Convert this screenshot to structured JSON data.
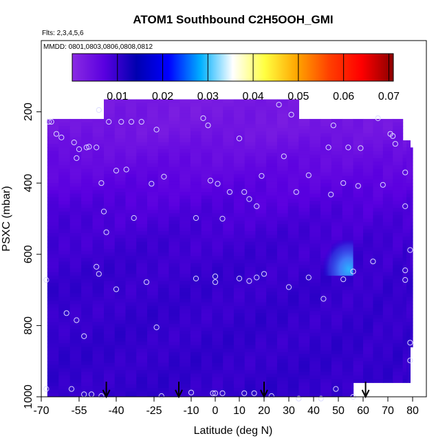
{
  "chart_data": {
    "type": "heatmap",
    "title": "ATOM1 Southbound C2H5OOH_GMI",
    "annotations": {
      "flights": "Flts: 2,3,4,5,6",
      "dates": "MMDD: 0801,0803,0806,0808,0812"
    },
    "xlabel": "Latitude (deg N)",
    "ylabel": "PSXC (mbar)",
    "xlim": [
      -70,
      80
    ],
    "ylim": [
      1000,
      0
    ],
    "y_inverted": true,
    "x_ticks": [
      -70,
      -55,
      -40,
      -25,
      -10,
      0,
      10,
      20,
      30,
      40,
      50,
      60,
      70,
      80
    ],
    "x_tick_labels": [
      "-70",
      "-55",
      "-40",
      "-25",
      "-10",
      "0",
      "10",
      "20",
      "30",
      "40",
      "50",
      "60",
      "70",
      "80"
    ],
    "y_ticks": [
      200,
      400,
      600,
      800,
      1000
    ],
    "y_tick_labels": [
      "200",
      "400",
      "600",
      "800",
      "1000"
    ],
    "colorbar": {
      "range": [
        0,
        0.071
      ],
      "ticks": [
        0.01,
        0.02,
        0.03,
        0.04,
        0.05,
        0.06,
        0.07
      ],
      "tick_labels": [
        "0.01",
        "0.02",
        "0.03",
        "0.04",
        "0.05",
        "0.06",
        "0.07"
      ],
      "colors": [
        "#8a2be2",
        "#5a00e0",
        "#0000b0",
        "#0000ff",
        "#00b0ff",
        "#ffffff",
        "#ffff40",
        "#ffa500",
        "#ff4000",
        "#ff0000",
        "#8b0000"
      ]
    },
    "lat_bands": [
      {
        "lat": [
          -67.6,
          -45
        ],
        "pmin": 220,
        "pmax": 1000
      },
      {
        "lat": [
          -45,
          34
        ],
        "pmin": 165,
        "pmax": 1000
      },
      {
        "lat": [
          34,
          56
        ],
        "pmin": 220,
        "pmax": 1000
      },
      {
        "lat": [
          56,
          76
        ],
        "pmin": 220,
        "pmax": 960
      },
      {
        "lat": [
          76,
          79
        ],
        "pmin": 280,
        "pmax": 960
      },
      {
        "lat": [
          79,
          80
        ],
        "pmin": 300,
        "pmax": 860
      }
    ],
    "field_profile": [
      {
        "p": 160,
        "value": 0.0028
      },
      {
        "p": 250,
        "value": 0.0035
      },
      {
        "p": 320,
        "value": 0.0052
      },
      {
        "p": 400,
        "value": 0.0068
      },
      {
        "p": 480,
        "value": 0.0082
      },
      {
        "p": 560,
        "value": 0.0092
      },
      {
        "p": 650,
        "value": 0.0098
      },
      {
        "p": 800,
        "value": 0.0101
      },
      {
        "p": 1000,
        "value": 0.0103
      }
    ],
    "anomaly": {
      "lat": [
        44,
        56
      ],
      "p": [
        560,
        660
      ],
      "peak_lat": 54,
      "peak_p": 650,
      "peak_value": 0.022
    },
    "observations": [
      [
        -67,
        228
      ],
      [
        -66,
        228
      ],
      [
        -64,
        262
      ],
      [
        -62,
        272
      ],
      [
        -57,
        286
      ],
      [
        -56,
        330
      ],
      [
        -55,
        305
      ],
      [
        -52,
        300
      ],
      [
        -51,
        298
      ],
      [
        -48,
        300
      ],
      [
        -47,
        195
      ],
      [
        -46,
        400
      ],
      [
        -45,
        480
      ],
      [
        -44,
        538
      ],
      [
        -43,
        228
      ],
      [
        -40,
        365
      ],
      [
        -38,
        228
      ],
      [
        -36,
        362
      ],
      [
        -34,
        228
      ],
      [
        -33,
        498
      ],
      [
        -30,
        228
      ],
      [
        -26,
        402
      ],
      [
        -24,
        250
      ],
      [
        -21,
        382
      ],
      [
        -8,
        498
      ],
      [
        -5,
        218
      ],
      [
        -3,
        238
      ],
      [
        -2,
        393
      ],
      [
        1,
        402
      ],
      [
        3,
        500
      ],
      [
        6,
        425
      ],
      [
        10,
        275
      ],
      [
        12,
        425
      ],
      [
        14,
        445
      ],
      [
        17,
        465
      ],
      [
        19,
        380
      ],
      [
        26,
        180
      ],
      [
        28,
        325
      ],
      [
        31,
        208
      ],
      [
        33,
        425
      ],
      [
        38,
        378
      ],
      [
        46,
        300
      ],
      [
        47,
        432
      ],
      [
        48,
        238
      ],
      [
        52,
        400
      ],
      [
        54,
        300
      ],
      [
        58,
        408
      ],
      [
        59,
        302
      ],
      [
        66,
        218
      ],
      [
        68,
        405
      ],
      [
        71,
        262
      ],
      [
        72,
        268
      ],
      [
        73,
        290
      ],
      [
        77,
        465
      ],
      [
        77,
        370
      ],
      [
        -68,
        672
      ],
      [
        -60,
        765
      ],
      [
        -56,
        785
      ],
      [
        -53,
        830
      ],
      [
        -48,
        635
      ],
      [
        -47,
        655
      ],
      [
        -40,
        698
      ],
      [
        -28,
        678
      ],
      [
        -24,
        805
      ],
      [
        -8,
        668
      ],
      [
        0,
        662
      ],
      [
        0,
        678
      ],
      [
        10,
        668
      ],
      [
        14,
        675
      ],
      [
        17,
        665
      ],
      [
        20,
        655
      ],
      [
        30,
        692
      ],
      [
        38,
        665
      ],
      [
        44,
        725
      ],
      [
        52,
        670
      ],
      [
        56,
        648
      ],
      [
        64,
        620
      ],
      [
        77,
        645
      ],
      [
        77,
        672
      ],
      [
        79,
        588
      ],
      [
        79,
        848
      ],
      [
        79,
        898
      ],
      [
        -68,
        978
      ],
      [
        -58,
        978
      ],
      [
        -53,
        993
      ],
      [
        -50,
        993
      ],
      [
        -46,
        998
      ],
      [
        -22,
        998
      ],
      [
        -10,
        988
      ],
      [
        -1,
        990
      ],
      [
        0,
        990
      ],
      [
        3,
        990
      ],
      [
        12,
        990
      ],
      [
        16,
        990
      ],
      [
        23,
        998
      ],
      [
        34,
        1005
      ],
      [
        43,
        1005
      ],
      [
        49,
        978
      ],
      [
        56,
        1000
      ]
    ],
    "flight_markers": [
      -44,
      -15,
      20,
      61
    ]
  }
}
